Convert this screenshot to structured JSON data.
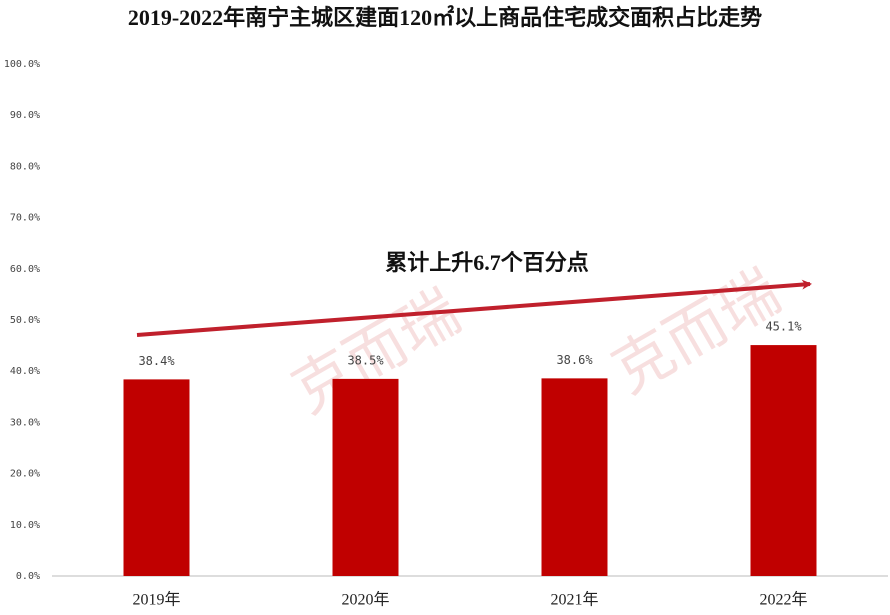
{
  "chart_data": {
    "type": "bar",
    "title": "2019-2022年南宁主城区建面120㎡以上商品住宅成交面积占比走势",
    "annotation": "累计上升6.7个百分点",
    "watermark": "克而瑞",
    "categories": [
      "2019年",
      "2020年",
      "2021年",
      "2022年"
    ],
    "values": [
      38.4,
      38.5,
      38.6,
      45.1
    ],
    "value_labels": [
      "38.4%",
      "38.5%",
      "38.6%",
      "45.1%"
    ],
    "color": "#c00000",
    "ylim": [
      0,
      100
    ],
    "yticks": [
      {
        "value": 0,
        "label": "0.0%"
      },
      {
        "value": 10,
        "label": "10.0%"
      },
      {
        "value": 20,
        "label": "20.0%"
      },
      {
        "value": 30,
        "label": "30.0%"
      },
      {
        "value": 40,
        "label": "40.0%"
      },
      {
        "value": 50,
        "label": "50.0%"
      },
      {
        "value": 60,
        "label": "60.0%"
      },
      {
        "value": 70,
        "label": "70.0%"
      },
      {
        "value": 80,
        "label": "80.0%"
      },
      {
        "value": 90,
        "label": "90.0%"
      },
      {
        "value": 100,
        "label": "100.0%"
      }
    ],
    "grid": false
  }
}
